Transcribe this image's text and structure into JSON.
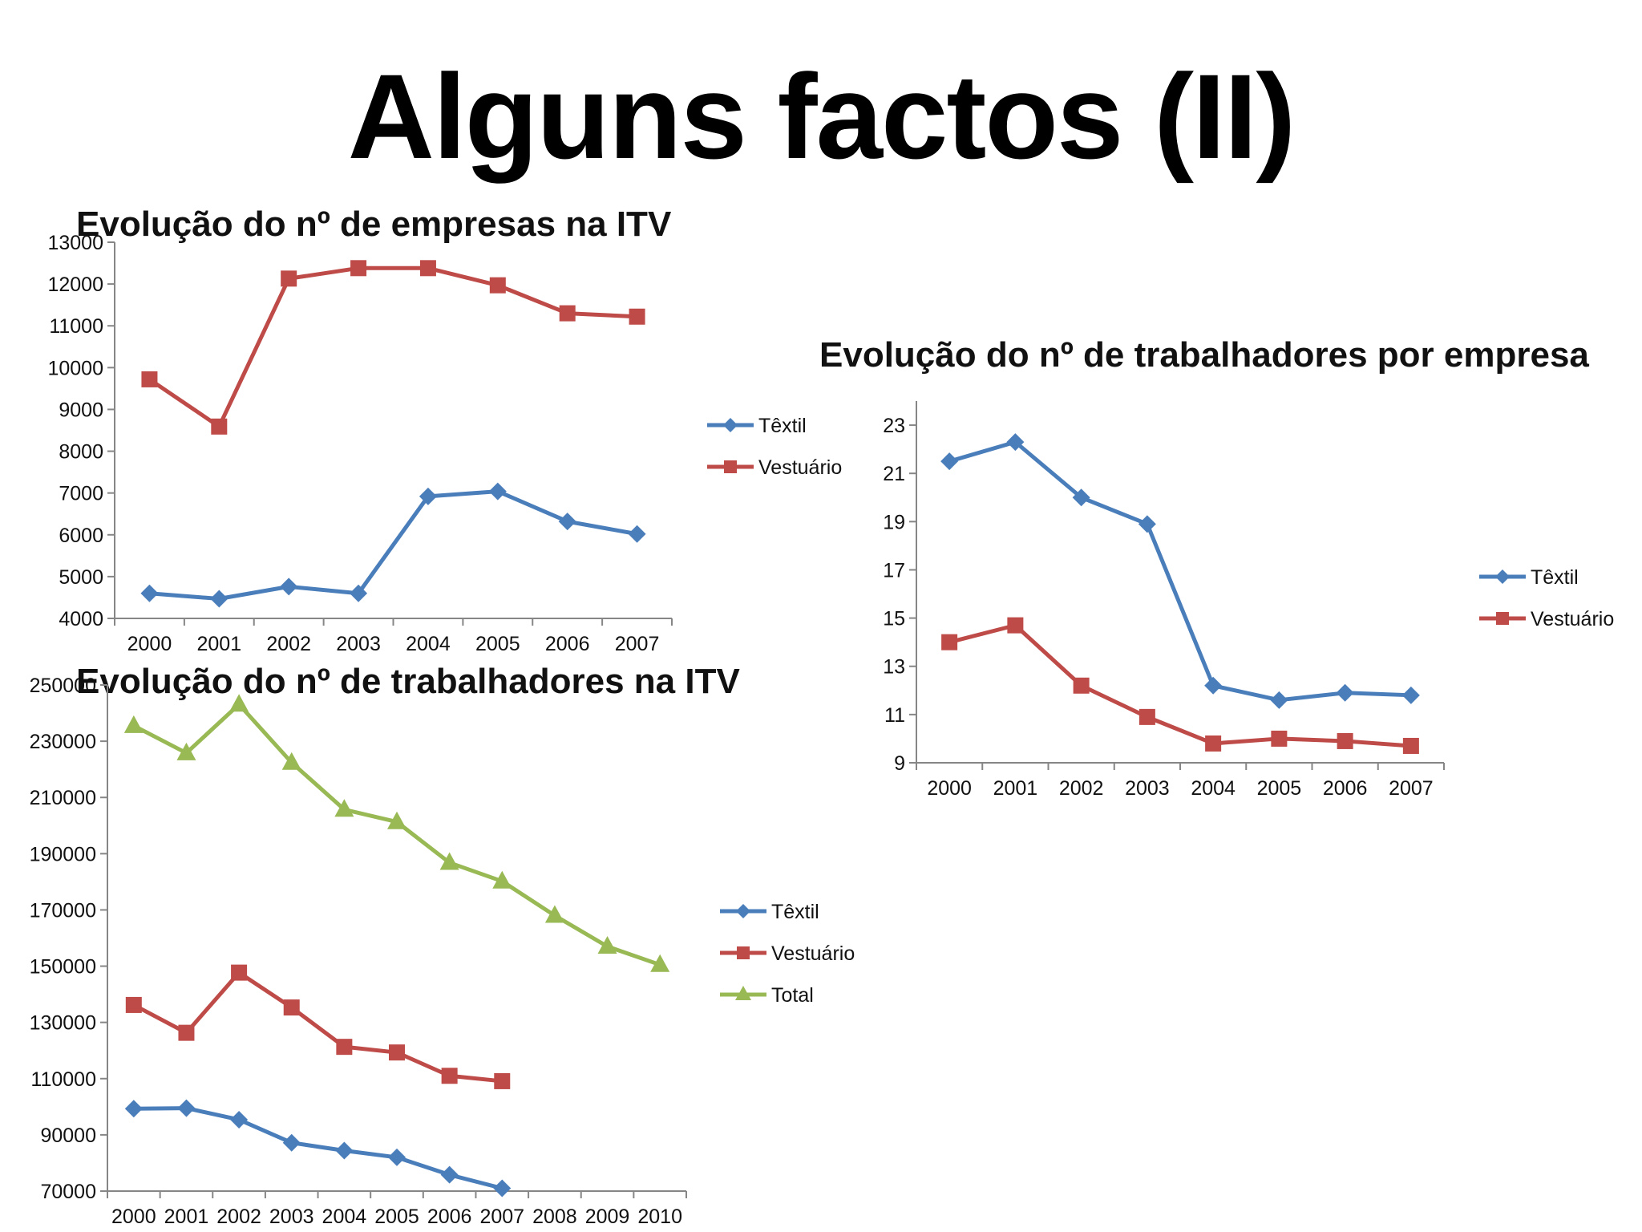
{
  "title": "Alguns factos (II)",
  "colors": {
    "textil": "#4a7ebb",
    "vestuario": "#be4b48",
    "total": "#98b954"
  },
  "chart_data": [
    {
      "type": "line",
      "title": "Evolução do nº de empresas na ITV",
      "categories": [
        "2000",
        "2001",
        "2002",
        "2003",
        "2004",
        "2005",
        "2006",
        "2007"
      ],
      "ylim": [
        4000,
        13000
      ],
      "yticks": [
        4000,
        5000,
        6000,
        7000,
        8000,
        9000,
        10000,
        11000,
        12000,
        13000
      ],
      "series": [
        {
          "name": "Têxtil",
          "marker": "diamond",
          "color": "#4a7ebb",
          "values": [
            4600,
            4470,
            4760,
            4600,
            6920,
            7040,
            6320,
            6020
          ]
        },
        {
          "name": "Vestuário",
          "marker": "square",
          "color": "#be4b48",
          "values": [
            9720,
            8590,
            12130,
            12380,
            12380,
            11970,
            11300,
            11220
          ]
        }
      ],
      "legend": "right"
    },
    {
      "type": "line",
      "title": "Evolução do nº de trabalhadores por empresa",
      "categories": [
        "2000",
        "2001",
        "2002",
        "2003",
        "2004",
        "2005",
        "2006",
        "2007"
      ],
      "ylim": [
        9,
        24
      ],
      "yticks": [
        9,
        11,
        13,
        15,
        17,
        19,
        21,
        23
      ],
      "series": [
        {
          "name": "Têxtil",
          "marker": "diamond",
          "color": "#4a7ebb",
          "values": [
            21.5,
            22.3,
            20.0,
            18.9,
            12.2,
            11.6,
            11.9,
            11.8
          ]
        },
        {
          "name": "Vestuário",
          "marker": "square",
          "color": "#be4b48",
          "values": [
            14.0,
            14.7,
            12.2,
            10.9,
            9.8,
            10.0,
            9.9,
            9.7
          ]
        }
      ],
      "legend": "right"
    },
    {
      "type": "line",
      "title": "Evolução do nº de trabalhadores na ITV",
      "categories": [
        "2000",
        "2001",
        "2002",
        "2003",
        "2004",
        "2005",
        "2006",
        "2007",
        "2008",
        "2009",
        "2010"
      ],
      "ylim": [
        70000,
        250000
      ],
      "yticks": [
        70000,
        90000,
        110000,
        130000,
        150000,
        170000,
        190000,
        210000,
        230000,
        250000
      ],
      "series": [
        {
          "name": "Têxtil",
          "marker": "diamond",
          "color": "#4a7ebb",
          "values": [
            99300,
            99500,
            95400,
            87200,
            84400,
            82000,
            75800,
            71000,
            null,
            null,
            null
          ]
        },
        {
          "name": "Vestuário",
          "marker": "square",
          "color": "#be4b48",
          "values": [
            136200,
            126300,
            147700,
            135300,
            121300,
            119300,
            111000,
            109100,
            null,
            null,
            null
          ]
        },
        {
          "name": "Total",
          "marker": "triangle",
          "color": "#98b954",
          "values": [
            235500,
            225800,
            243100,
            222400,
            205700,
            201300,
            186800,
            180200,
            168000,
            157000,
            150500
          ]
        }
      ],
      "legend": "right"
    }
  ]
}
